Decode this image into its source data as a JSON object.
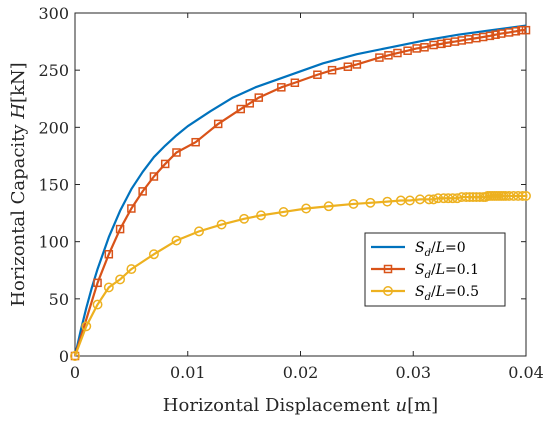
{
  "chart_data": {
    "type": "line",
    "title": "",
    "xlabel": {
      "main": "Horizontal Displacement ",
      "var": "u",
      "unit": "[m]"
    },
    "ylabel": {
      "main": "Horizontal Capacity ",
      "var": "H",
      "unit": "[kN]"
    },
    "xlim": [
      0,
      0.04
    ],
    "ylim": [
      0,
      300
    ],
    "xticks": [
      0,
      0.01,
      0.02,
      0.03,
      0.04
    ],
    "xtick_labels": [
      "0",
      "0.01",
      "0.02",
      "0.03",
      "0.04"
    ],
    "yticks": [
      0,
      50,
      100,
      150,
      200,
      250,
      300
    ],
    "ytick_labels": [
      "0",
      "50",
      "100",
      "150",
      "200",
      "250",
      "300"
    ],
    "grid": false,
    "legend_position": "lower-right",
    "series": [
      {
        "label": {
          "a": "S",
          "sub": "d",
          "b": "/",
          "c": "L",
          "d": "=0"
        },
        "color": "#0072bd",
        "marker": "none",
        "x": [
          0,
          0.0005,
          0.001,
          0.0015,
          0.002,
          0.003,
          0.004,
          0.005,
          0.006,
          0.007,
          0.008,
          0.009,
          0.01,
          0.012,
          0.014,
          0.016,
          0.018,
          0.02,
          0.022,
          0.025,
          0.028,
          0.031,
          0.034,
          0.037,
          0.04
        ],
        "y": [
          0,
          22,
          42,
          60,
          76,
          104,
          127,
          146,
          161,
          174,
          184,
          193,
          201,
          214,
          226,
          235,
          242,
          249,
          256,
          264,
          270,
          276,
          281,
          285,
          289
        ]
      },
      {
        "label": {
          "a": "S",
          "sub": "d",
          "b": "/",
          "c": "L",
          "d": "=0.1"
        },
        "color": "#d95319",
        "marker": "square",
        "x": [
          0,
          0.002,
          0.003,
          0.004,
          0.005,
          0.006,
          0.007,
          0.008,
          0.009,
          0.0107,
          0.0127,
          0.0147,
          0.0155,
          0.0163,
          0.0183,
          0.0195,
          0.0215,
          0.0228,
          0.0242,
          0.025,
          0.027,
          0.0278,
          0.0286,
          0.0295,
          0.0303,
          0.031,
          0.0318,
          0.0325,
          0.033,
          0.0337,
          0.0343,
          0.0349,
          0.0356,
          0.0362,
          0.0368,
          0.0373,
          0.0378,
          0.0385,
          0.0391,
          0.0396,
          0.04
        ],
        "y": [
          0,
          64,
          89,
          111,
          129,
          144,
          157,
          168,
          178,
          187,
          203,
          216,
          221,
          226,
          235,
          239,
          246,
          250,
          253,
          255,
          261,
          263,
          265,
          267,
          269,
          270,
          272,
          273,
          274,
          275,
          276,
          277,
          278,
          279,
          280,
          281,
          282,
          283,
          284,
          285,
          285
        ]
      },
      {
        "label": {
          "a": "S",
          "sub": "d",
          "b": "/",
          "c": "L",
          "d": "=0.5"
        },
        "color": "#edb120",
        "marker": "circle",
        "x": [
          0,
          0.001,
          0.002,
          0.003,
          0.004,
          0.005,
          0.007,
          0.009,
          0.011,
          0.013,
          0.015,
          0.0165,
          0.0185,
          0.0205,
          0.0225,
          0.0247,
          0.0262,
          0.0277,
          0.0289,
          0.0297,
          0.0306,
          0.0314,
          0.0318,
          0.0322,
          0.0327,
          0.0331,
          0.0335,
          0.0339,
          0.0343,
          0.0347,
          0.035,
          0.0353,
          0.0356,
          0.0359,
          0.0362,
          0.0364,
          0.0366,
          0.0368,
          0.037,
          0.0372,
          0.0374,
          0.0376,
          0.0378,
          0.038,
          0.0382,
          0.0385,
          0.0389,
          0.0393,
          0.0397,
          0.04
        ],
        "y": [
          0,
          26,
          45,
          60,
          67,
          76,
          89,
          101,
          109,
          115,
          120,
          123,
          126,
          129,
          131,
          133,
          134,
          135,
          136,
          136,
          137,
          137,
          137,
          138,
          138,
          138,
          138,
          138,
          139,
          139,
          139,
          139,
          139,
          139,
          139,
          139,
          140,
          140,
          140,
          140,
          140,
          140,
          140,
          140,
          140,
          140,
          140,
          140,
          140,
          140
        ]
      }
    ]
  }
}
